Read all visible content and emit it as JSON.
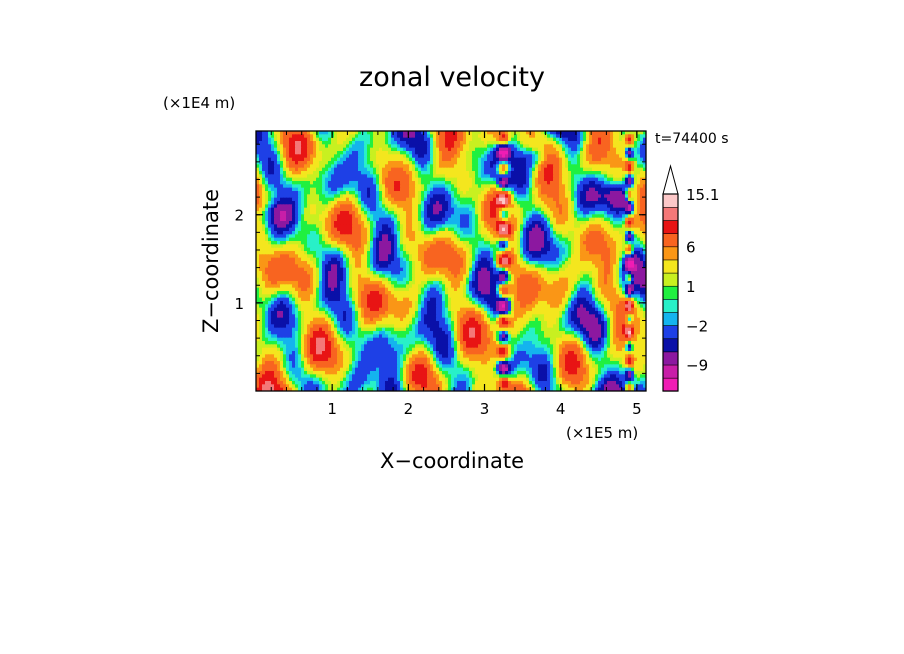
{
  "chart_data": {
    "type": "heatmap",
    "title": "zonal velocity",
    "time_label": "t=74400 s",
    "xlabel": "X−coordinate",
    "ylabel": "Z−coordinate",
    "x_unit": "(×1E5 m)",
    "y_unit": "(×1E4 m)",
    "xlim": [
      0,
      5.12
    ],
    "ylim": [
      0,
      2.95
    ],
    "x_ticks": [
      1,
      2,
      3,
      4,
      5
    ],
    "x_tick_labels": [
      "1",
      "2",
      "3",
      "4",
      "5"
    ],
    "y_ticks": [
      1,
      2
    ],
    "y_tick_labels": [
      "1",
      "2"
    ],
    "colorbar": {
      "levels": [
        -15.1,
        -12,
        -9,
        -6,
        -4,
        -2,
        -1,
        0,
        1,
        2,
        4,
        6,
        9,
        12,
        15.1
      ],
      "colors": [
        "#f01cb4",
        "#c81ea8",
        "#8c18a0",
        "#0a10a8",
        "#1e40e6",
        "#14b4ee",
        "#28f0c8",
        "#20f040",
        "#c8f020",
        "#f4e61e",
        "#fa9616",
        "#f86420",
        "#e81414",
        "#f47878",
        "#fcc8c8"
      ],
      "extend_top_color": "#ffffff",
      "tick_values": [
        15.1,
        6,
        1,
        -2,
        -9
      ],
      "tick_labels": [
        "15.1",
        "6",
        "1",
        "−2",
        "−9"
      ]
    }
  }
}
